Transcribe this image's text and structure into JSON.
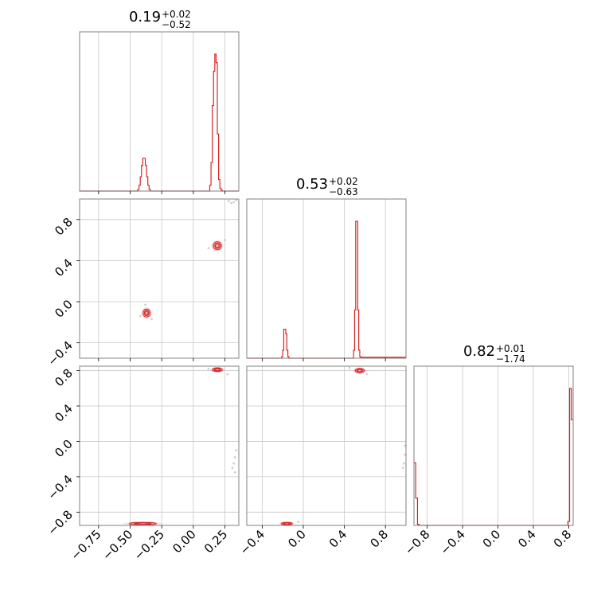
{
  "chart_data": {
    "type": "corner",
    "color": "#d62728",
    "parameters": [
      {
        "range": [
          -0.9,
          0.36
        ],
        "median": "0.19",
        "plus": "+0.02",
        "minus": "−0.52",
        "ticks": [
          -0.75,
          -0.5,
          -0.25,
          0.0,
          0.25
        ],
        "tick_labels": [
          "−0.75",
          "−0.50",
          "−0.25",
          "0.00",
          "0.25"
        ]
      },
      {
        "range": [
          -0.55,
          1.0
        ],
        "median": "0.53",
        "plus": "+0.02",
        "minus": "−0.63",
        "ticks": [
          -0.4,
          0.0,
          0.4,
          0.8
        ],
        "tick_labels": [
          "−0.4",
          "0.0",
          "0.4",
          "0.8"
        ]
      },
      {
        "range": [
          -0.95,
          0.85
        ],
        "median": "0.82",
        "plus": "+0.01",
        "minus": "−1.74",
        "ticks": [
          -0.8,
          -0.4,
          0.0,
          0.4,
          0.8
        ],
        "tick_labels": [
          "−0.8",
          "−0.4",
          "0.0",
          "0.4",
          "0.8"
        ]
      }
    ],
    "histograms": [
      {
        "edges": [
          -0.9,
          -0.44,
          -0.43,
          -0.42,
          -0.41,
          -0.4,
          -0.39,
          -0.38,
          -0.37,
          -0.36,
          -0.35,
          -0.34,
          -0.33,
          0.13,
          0.14,
          0.15,
          0.16,
          0.17,
          0.18,
          0.19,
          0.2,
          0.21,
          0.22,
          0.23,
          0.36
        ],
        "counts": [
          0,
          0.01,
          0.04,
          0.1,
          0.18,
          0.23,
          0.23,
          0.18,
          0.1,
          0.04,
          0.01,
          0,
          0,
          0.04,
          0.2,
          0.6,
          0.84,
          0.96,
          0.9,
          0.4,
          0.08,
          0.02,
          0.005,
          0
        ]
      },
      {
        "edges": [
          -0.55,
          -0.21,
          -0.2,
          -0.19,
          -0.18,
          -0.17,
          -0.16,
          -0.15,
          -0.14,
          -0.13,
          0.49,
          0.5,
          0.51,
          0.52,
          0.53,
          0.54,
          0.55,
          0.56,
          0.57,
          1.0
        ],
        "counts": [
          0,
          0.01,
          0.05,
          0.18,
          0.18,
          0.15,
          0.05,
          0.01,
          0,
          0,
          0.05,
          0.3,
          0.85,
          0.85,
          0.3,
          0.05,
          0.01,
          0.004,
          0.006
        ]
      },
      {
        "edges": [
          -0.95,
          -0.93,
          -0.91,
          -0.89,
          -0.87,
          0.79,
          0.81,
          0.83,
          0.85
        ],
        "counts": [
          0.32,
          0.14,
          0.005,
          0,
          0,
          0.02,
          0.7,
          0.54
        ]
      }
    ],
    "pairs": [
      {
        "x_param": 0,
        "y_param": 1,
        "clusters": [
          {
            "x": 0.19,
            "y": 0.545,
            "sx": 0.018,
            "sy": 0.022
          },
          {
            "x": -0.37,
            "y": -0.11,
            "sx": 0.016,
            "sy": 0.022
          }
        ],
        "scatter": [
          [
            0.28,
            0.98
          ],
          [
            0.32,
            0.97
          ],
          [
            0.34,
            0.99
          ],
          [
            0.3,
            0.96
          ],
          [
            -0.38,
            -0.03
          ],
          [
            -0.42,
            -0.14
          ],
          [
            -0.33,
            -0.17
          ],
          [
            0.12,
            0.52
          ],
          [
            0.25,
            0.6
          ]
        ]
      },
      {
        "x_param": 0,
        "y_param": 2,
        "clusters": [
          {
            "x": 0.19,
            "y": 0.81,
            "sx": 0.022,
            "sy": 0.012
          },
          {
            "x": -0.4,
            "y": -0.93,
            "sx": 0.06,
            "sy": 0.008
          }
        ],
        "scatter": [
          [
            0.32,
            -0.25
          ],
          [
            0.33,
            -0.18
          ],
          [
            0.34,
            -0.1
          ],
          [
            0.31,
            -0.3
          ],
          [
            0.33,
            -0.35
          ],
          [
            0.27,
            0.76
          ],
          [
            0.12,
            0.82
          ]
        ]
      },
      {
        "x_param": 1,
        "y_param": 2,
        "clusters": [
          {
            "x": 0.55,
            "y": 0.8,
            "sx": 0.025,
            "sy": 0.014
          },
          {
            "x": -0.16,
            "y": -0.93,
            "sx": 0.03,
            "sy": 0.008
          }
        ],
        "scatter": [
          [
            0.98,
            -0.25
          ],
          [
            0.99,
            -0.15
          ],
          [
            0.99,
            -0.05
          ],
          [
            0.97,
            -0.3
          ],
          [
            0.62,
            0.76
          ],
          [
            0.45,
            0.83
          ],
          [
            -0.05,
            -0.91
          ]
        ]
      }
    ]
  }
}
